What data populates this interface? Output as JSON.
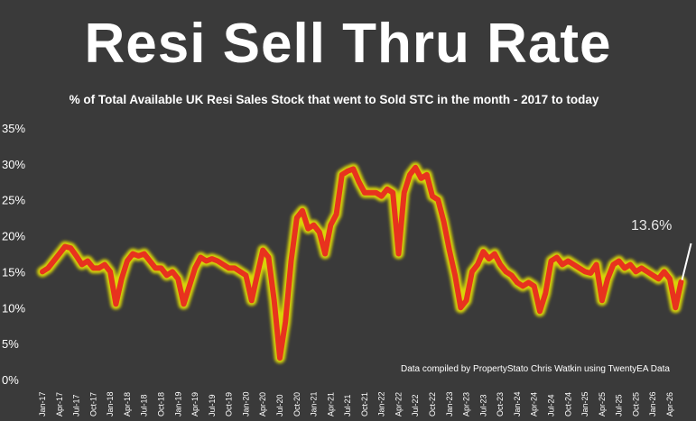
{
  "chart_data": {
    "type": "line",
    "title": "Resi Sell Thru Rate",
    "subtitle": "% of Total Available UK Resi Sales Stock that went to Sold STC in the month - 2017 to today",
    "ylim": [
      0,
      35
    ],
    "yticks": [
      "0%",
      "5%",
      "10%",
      "15%",
      "20%",
      "25%",
      "30%",
      "35%"
    ],
    "ytick_values": [
      0,
      5,
      10,
      15,
      20,
      25,
      30,
      35
    ],
    "xticks": [
      "Jan-17",
      "Apr-17",
      "Jul-17",
      "Oct-17",
      "Jan-18",
      "Apr-18",
      "Jul-18",
      "Oct-18",
      "Jan-19",
      "Apr-19",
      "Jul-19",
      "Oct-19",
      "Jan-20",
      "Apr-20",
      "Jul-20",
      "Oct-20",
      "Jan-21",
      "Apr-21",
      "Jul-21",
      "Oct-21",
      "Jan-22",
      "Apr-22",
      "Jul-22",
      "Oct-22",
      "Jan-23",
      "Apr-23",
      "Jul-23",
      "Oct-23",
      "Jan-24",
      "Apr-24",
      "Jul-24",
      "Oct-24",
      "Jan-25",
      "Apr-25",
      "Jul-25",
      "Oct-25",
      "Jan-26",
      "Apr-26"
    ],
    "series": [
      {
        "color": "#e8321e",
        "glow": "#f5f000",
        "values": [
          15.0,
          15.5,
          16.5,
          17.5,
          18.5,
          18.3,
          17.2,
          16.0,
          16.5,
          15.5,
          15.5,
          16.0,
          15.0,
          10.5,
          14.0,
          16.5,
          17.5,
          17.2,
          17.5,
          16.5,
          15.5,
          15.5,
          14.5,
          15.0,
          14.0,
          10.5,
          13.0,
          15.5,
          17.0,
          16.5,
          16.8,
          16.5,
          16.0,
          15.5,
          15.5,
          15.0,
          14.5,
          11.0,
          14.5,
          18.0,
          17.0,
          11.0,
          3.0,
          8.0,
          16.5,
          22.5,
          23.5,
          21.0,
          21.5,
          20.5,
          17.5,
          21.5,
          23.0,
          28.5,
          29.0,
          29.3,
          27.5,
          26.0,
          26.0,
          26.0,
          25.5,
          26.5,
          26.0,
          17.5,
          26.0,
          28.5,
          29.5,
          28.0,
          28.5,
          25.5,
          25.0,
          22.0,
          18.0,
          14.5,
          10.0,
          11.0,
          15.0,
          16.0,
          17.8,
          16.8,
          17.5,
          16.0,
          15.0,
          14.5,
          13.5,
          13.0,
          13.5,
          13.0,
          9.5,
          12.0,
          16.5,
          17.0,
          16.0,
          16.5,
          16.0,
          15.5,
          15.0,
          14.8,
          16.0,
          11.0,
          14.0,
          16.0,
          16.5,
          15.5,
          16.0,
          15.0,
          15.5,
          15.0,
          14.5,
          14.0,
          15.0,
          14.0,
          10.0,
          13.6
        ]
      }
    ],
    "annotation": "13.6%",
    "credit": "Data compiled by PropertyStato Chris Watkin using TwentyEA Data",
    "grid": false,
    "legend": "none"
  }
}
